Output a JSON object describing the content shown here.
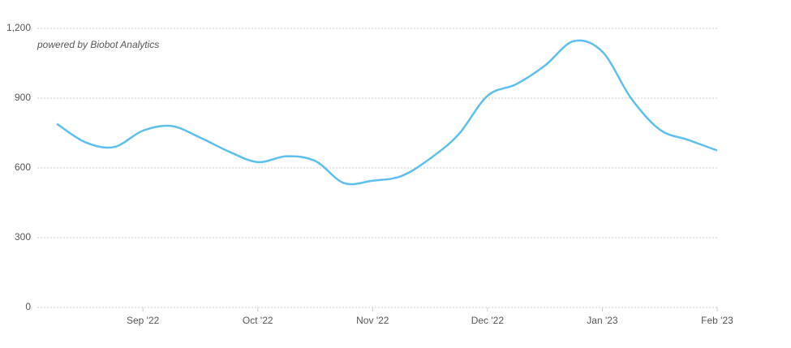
{
  "chart_data": {
    "type": "line",
    "annotation": "powered by Biobot Analytics",
    "categories": [
      null,
      null,
      null,
      "Sep '22",
      null,
      null,
      null,
      "Oct '22",
      null,
      null,
      null,
      "Nov '22",
      null,
      null,
      null,
      "Dec '22",
      null,
      null,
      null,
      "Jan '23",
      null,
      null,
      null,
      "Feb '23"
    ],
    "series": [
      {
        "color": "#5bbff0",
        "values": [
          790,
          710,
          690,
          760,
          780,
          730,
          670,
          625,
          650,
          630,
          535,
          545,
          565,
          640,
          745,
          910,
          960,
          1040,
          1145,
          1100,
          900,
          765,
          720,
          675
        ]
      }
    ],
    "ylim": [
      0,
      1200
    ],
    "yticks": [
      0,
      300,
      600,
      900,
      {
        "value": 1200,
        "label": "1,200"
      }
    ],
    "grid": true
  }
}
